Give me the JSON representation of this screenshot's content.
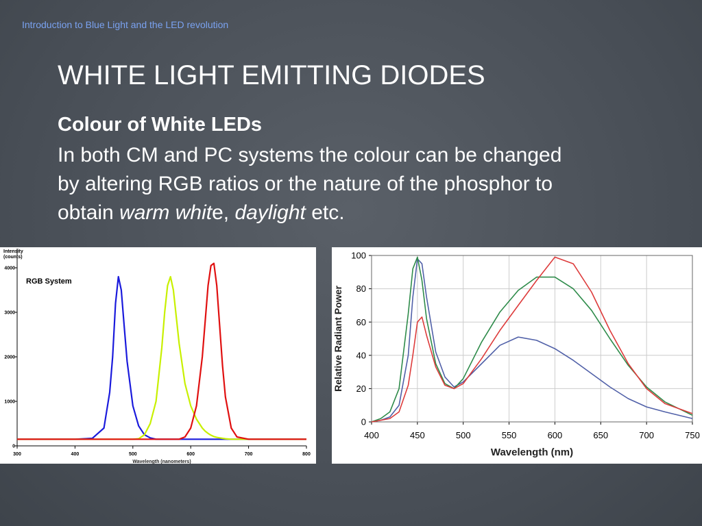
{
  "header": "Introduction to Blue Light and the LED revolution",
  "title": "WHITE LIGHT EMITTING DIODES",
  "subtitle": "Colour of White LEDs",
  "body": [
    "In both CM and PC systems the colour can be changed",
    "by altering RGB ratios or the nature of the phosphor to",
    [
      "obtain ",
      "warm whit",
      "e",
      ", ",
      "daylight",
      " etc."
    ]
  ],
  "chart_data": [
    {
      "type": "line",
      "annotation": "RGB System",
      "ylabel": [
        "Intensity",
        "(counts)"
      ],
      "xlabel": "Wavelength (nanometers)",
      "xlim": [
        300,
        800
      ],
      "xticks": [
        300,
        400,
        500,
        600,
        700,
        800
      ],
      "ylim": [
        0,
        4200
      ],
      "yticks": [
        0,
        1000,
        2000,
        3000,
        4000
      ],
      "grid": false,
      "x": [
        300,
        350,
        400,
        430,
        450,
        460,
        465,
        470,
        475,
        480,
        485,
        490,
        500,
        510,
        520,
        530,
        540,
        550,
        555,
        560,
        565,
        570,
        575,
        580,
        590,
        600,
        610,
        620,
        625,
        630,
        635,
        640,
        645,
        650,
        655,
        660,
        670,
        680,
        700,
        750,
        800
      ],
      "series": [
        {
          "color": "#1a1adc",
          "values": [
            150,
            150,
            150,
            170,
            400,
            1200,
            2000,
            3200,
            3800,
            3500,
            2700,
            1900,
            900,
            450,
            250,
            180,
            150,
            150,
            150,
            150,
            150,
            150,
            150,
            150,
            150,
            150,
            150,
            150,
            150,
            150,
            150,
            150,
            150,
            150,
            150,
            150,
            150,
            150,
            150,
            150,
            150
          ]
        },
        {
          "color": "#c8f000",
          "values": [
            150,
            150,
            150,
            150,
            150,
            150,
            150,
            150,
            150,
            150,
            150,
            150,
            150,
            160,
            250,
            500,
            1000,
            2200,
            3000,
            3600,
            3800,
            3500,
            2900,
            2300,
            1400,
            900,
            600,
            400,
            330,
            280,
            240,
            210,
            190,
            180,
            170,
            160,
            150,
            150,
            150,
            150,
            150
          ]
        },
        {
          "color": "#e01010",
          "values": [
            150,
            150,
            150,
            150,
            150,
            150,
            150,
            150,
            150,
            150,
            150,
            150,
            150,
            150,
            150,
            150,
            150,
            150,
            150,
            150,
            150,
            150,
            150,
            150,
            200,
            400,
            900,
            2000,
            2800,
            3600,
            4050,
            4100,
            3600,
            2700,
            1800,
            1100,
            400,
            200,
            150,
            150,
            150
          ]
        }
      ]
    },
    {
      "type": "line",
      "ylabel": "Relative Radiant Power",
      "xlabel": "Wavelength (nm)",
      "xlim": [
        400,
        750
      ],
      "xticks": [
        400,
        450,
        500,
        550,
        600,
        650,
        700,
        750
      ],
      "ylim": [
        0,
        100
      ],
      "yticks": [
        0,
        20,
        40,
        60,
        80,
        100
      ],
      "grid": true,
      "x": [
        400,
        410,
        420,
        430,
        440,
        445,
        450,
        455,
        460,
        470,
        480,
        490,
        500,
        520,
        540,
        560,
        580,
        600,
        620,
        640,
        660,
        680,
        700,
        720,
        750
      ],
      "series": [
        {
          "color": "#5060a8",
          "values": [
            0,
            1,
            3,
            10,
            40,
            75,
            98,
            95,
            75,
            42,
            27,
            21,
            24,
            35,
            46,
            51,
            49,
            44,
            37,
            29,
            21,
            14,
            9,
            6,
            2
          ]
        },
        {
          "color": "#2e8b4a",
          "values": [
            0,
            2,
            6,
            20,
            65,
            92,
            99,
            85,
            62,
            35,
            23,
            20,
            26,
            48,
            66,
            79,
            87,
            87,
            80,
            67,
            50,
            34,
            21,
            12,
            4
          ]
        },
        {
          "color": "#dd3b3b",
          "values": [
            0,
            1,
            2,
            6,
            22,
            40,
            60,
            63,
            52,
            33,
            22,
            20,
            23,
            38,
            55,
            70,
            85,
            99,
            95,
            78,
            55,
            35,
            20,
            11,
            5
          ]
        }
      ]
    }
  ]
}
